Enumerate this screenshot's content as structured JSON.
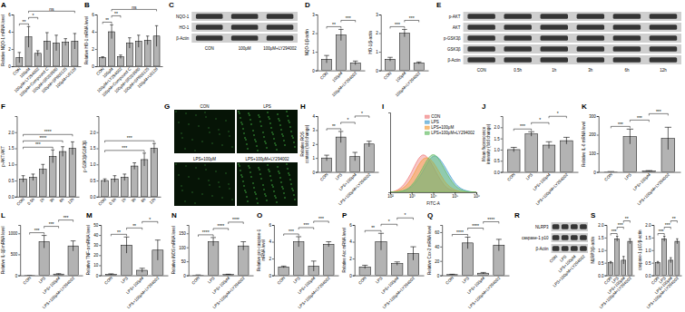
{
  "chart_data": [
    {
      "type": "bar",
      "title": "A",
      "ylabel": "Relative NQO-1 mRNA level",
      "categories": [
        "CON",
        "100μM",
        "100μM+LY294002",
        "100μM+Compound C",
        "100μM+SB203580",
        "100μM+SP600125",
        "100μM+U0126"
      ],
      "values": [
        1.0,
        3.4,
        1.5,
        2.9,
        2.7,
        2.8,
        2.9
      ],
      "errors": [
        0.6,
        1.2,
        0.3,
        1.0,
        0.9,
        0.4,
        0.9
      ],
      "ylim": [
        0,
        6
      ],
      "yticks": [
        0,
        2,
        4,
        6
      ],
      "color": "#b3b3b3",
      "annotations": [
        {
          "text": "**",
          "from": 0,
          "to": 1
        },
        {
          "text": "*",
          "from": 1,
          "to": 2
        },
        {
          "text": "ns",
          "from": 1,
          "to": 6
        }
      ]
    },
    {
      "type": "bar",
      "title": "B",
      "ylabel": "Relative HO-1 mRNA level",
      "categories": [
        "CON",
        "100μM",
        "100μM+LY294002",
        "100μM+Compound C",
        "100μM+SB203580",
        "100μM+SP600125",
        "100μM+U0126"
      ],
      "values": [
        1.0,
        4.0,
        1.1,
        2.7,
        2.9,
        3.0,
        3.5
      ],
      "errors": [
        0.1,
        0.8,
        0.2,
        0.6,
        0.7,
        0.5,
        1.2
      ],
      "ylim": [
        0,
        6
      ],
      "yticks": [
        0,
        2,
        4,
        6
      ],
      "color": "#b3b3b3",
      "annotations": [
        {
          "text": "**",
          "from": 0,
          "to": 1
        },
        {
          "text": "**",
          "from": 1,
          "to": 2
        },
        {
          "text": "ns",
          "from": 1,
          "to": 6
        }
      ]
    },
    {
      "type": "bar",
      "title": "D",
      "ylabel": "NQO-1/β-actin",
      "categories": [
        "CON",
        "100μM",
        "100μM+LY294002"
      ],
      "values": [
        0.6,
        1.9,
        0.4
      ],
      "errors": [
        0.2,
        0.3,
        0.1
      ],
      "ylim": [
        0,
        3
      ],
      "yticks": [
        0,
        1,
        2,
        3
      ],
      "color": "#b3b3b3",
      "annotations": [
        {
          "text": "**",
          "from": 0,
          "to": 1
        },
        {
          "text": "***",
          "from": 1,
          "to": 2
        }
      ]
    },
    {
      "type": "bar",
      "ylabel": "HO-1/β-actin",
      "categories": [
        "CON",
        "100μM",
        "100μM+LY294002"
      ],
      "values": [
        0.6,
        2.0,
        0.4
      ],
      "errors": [
        0.1,
        0.2,
        0.05
      ],
      "ylim": [
        0,
        3
      ],
      "yticks": [
        0,
        1,
        2,
        3
      ],
      "color": "#b3b3b3",
      "annotations": [
        {
          "text": "***",
          "from": 0,
          "to": 1
        },
        {
          "text": "***",
          "from": 1,
          "to": 2
        }
      ]
    },
    {
      "type": "bar",
      "title": "F",
      "ylabel": "p-AKT/AKT",
      "categories": [
        "CON",
        "0.5h",
        "1h",
        "3h",
        "6h",
        "12h"
      ],
      "values": [
        0.55,
        0.6,
        0.85,
        1.25,
        1.4,
        1.5
      ],
      "errors": [
        0.1,
        0.1,
        0.15,
        0.2,
        0.15,
        0.2
      ],
      "ylim": [
        0,
        2.5
      ],
      "yticks": [
        {
          "value": 0,
          "label": "0.0"
        },
        {
          "value": 0.5,
          "label": "0.5"
        },
        {
          "value": 1,
          "label": "1.0"
        },
        {
          "value": 1.5,
          "label": "1.5"
        },
        {
          "value": 2,
          "label": "2.0"
        }
      ],
      "color": "#b3b3b3",
      "annotations": [
        {
          "text": "***",
          "from": 0,
          "to": 3
        },
        {
          "text": "****",
          "from": 0,
          "to": 4
        },
        {
          "text": "****",
          "from": 0,
          "to": 5
        }
      ]
    },
    {
      "type": "bar",
      "ylabel": "p-GSK3β/GSK3β",
      "categories": [
        "CON",
        "0.5h",
        "1h",
        "3h",
        "6h",
        "12h"
      ],
      "values": [
        0.5,
        0.55,
        0.6,
        0.95,
        1.15,
        1.5
      ],
      "errors": [
        0.05,
        0.1,
        0.1,
        0.1,
        0.2,
        0.15
      ],
      "ylim": [
        0,
        2.5
      ],
      "yticks": [
        {
          "value": 0,
          "label": "0.0"
        },
        {
          "value": 0.5,
          "label": "0.5"
        },
        {
          "value": 1,
          "label": "1.0"
        },
        {
          "value": 1.5,
          "label": "1.5"
        },
        {
          "value": 2,
          "label": "2.0"
        }
      ],
      "color": "#b3b3b3",
      "annotations": [
        {
          "text": "***",
          "from": 0,
          "to": 4
        },
        {
          "text": "***",
          "from": 0,
          "to": 5
        }
      ]
    },
    {
      "type": "bar",
      "title": "H",
      "ylabel": "Relative ROS content (fold change)",
      "categories": [
        "CON",
        "LPS",
        "LPS+100μM",
        "LPS+100μM+LY294002"
      ],
      "values": [
        1.0,
        2.5,
        1.1,
        2.0
      ],
      "errors": [
        0.2,
        0.4,
        0.3,
        0.2
      ],
      "ylim": [
        0,
        4
      ],
      "yticks": [
        0,
        1,
        2,
        3,
        4
      ],
      "color": "#b3b3b3",
      "annotations": [
        {
          "text": "**",
          "from": 0,
          "to": 1
        },
        {
          "text": "*",
          "from": 1,
          "to": 2
        },
        {
          "text": "*",
          "from": 2,
          "to": 3
        }
      ]
    },
    {
      "type": "area",
      "title": "I",
      "xlabel": "FITC-A",
      "log": "x",
      "x": [
        100,
        316,
        1000,
        3162,
        10000,
        31623,
        100000,
        316228,
        1000000
      ],
      "xlim": [
        100,
        1000000
      ],
      "xticks": [
        {
          "value": 100,
          "label": "10²"
        },
        {
          "value": 1000,
          "label": "10³"
        },
        {
          "value": 10000,
          "label": "10⁴"
        },
        {
          "value": 100000,
          "label": "10⁵"
        },
        {
          "value": 1000000,
          "label": "10⁶"
        }
      ],
      "ylim": [
        0,
        170
      ],
      "tick_labels": "x",
      "legend": "top-right",
      "series": [
        {
          "name": "CON",
          "color": "#f08080",
          "values": [
            0,
            5,
            40,
            95,
            55,
            10,
            1,
            0,
            0
          ]
        },
        {
          "name": "LPS",
          "color": "#4fa3d1",
          "values": [
            0,
            1,
            8,
            40,
            90,
            60,
            15,
            2,
            0
          ]
        },
        {
          "name": "LPS+100μM",
          "color": "#f5a142",
          "values": [
            0,
            3,
            25,
            80,
            70,
            20,
            3,
            0,
            0
          ]
        },
        {
          "name": "LPS+100μM+LY294002",
          "color": "#6abf69",
          "values": [
            0,
            1,
            10,
            50,
            95,
            50,
            10,
            1,
            0
          ]
        }
      ]
    },
    {
      "type": "bar",
      "title": "J",
      "ylabel": "Mean fluorescence intensity (fold change)",
      "categories": [
        "CON",
        "LPS",
        "LPS+100μM",
        "LPS+100μM+LY294002"
      ],
      "values": [
        1.0,
        1.7,
        1.2,
        1.4
      ],
      "errors": [
        0.1,
        0.1,
        0.15,
        0.15
      ],
      "ylim": [
        0,
        2.5
      ],
      "yticks": [
        {
          "value": 0,
          "label": "0.0"
        },
        {
          "value": 0.5,
          "label": "0.5"
        },
        {
          "value": 1,
          "label": "1.0"
        },
        {
          "value": 1.5,
          "label": "1.5"
        },
        {
          "value": 2,
          "label": "2.0"
        }
      ],
      "color": "#b3b3b3",
      "annotations": [
        {
          "text": "***",
          "from": 0,
          "to": 1
        },
        {
          "text": "*",
          "from": 1,
          "to": 2
        },
        {
          "text": "*",
          "from": 2,
          "to": 3
        }
      ]
    },
    {
      "type": "bar",
      "title": "K",
      "ylabel": "Relative IL-6 mRNA level",
      "categories": [
        "CON",
        "LPS",
        "LPS+100μM",
        "LPS+100μM+LY294002"
      ],
      "values": [
        1,
        190,
        5,
        180
      ],
      "errors": [
        1,
        40,
        2,
        60
      ],
      "ylim": [
        0,
        300
      ],
      "yticks": [
        0,
        100,
        200,
        300
      ],
      "color": "#b3b3b3",
      "annotations": [
        {
          "text": "***",
          "from": 0,
          "to": 1
        },
        {
          "text": "***",
          "from": 1,
          "to": 2
        },
        {
          "text": "***",
          "from": 2,
          "to": 3
        }
      ]
    },
    {
      "type": "bar",
      "title": "L",
      "ylabel": "Relative IL-1β mRNA level",
      "categories": [
        "CON",
        "LPS",
        "LPS+100μM",
        "LPS+100μM+LY294002"
      ],
      "values": [
        1,
        800,
        30,
        700
      ],
      "errors": [
        1,
        150,
        10,
        120
      ],
      "ylim": [
        0,
        1200
      ],
      "yticks": [
        0,
        500,
        1000
      ],
      "color": "#b3b3b3",
      "annotations": [
        {
          "text": "***",
          "from": 0,
          "to": 1
        },
        {
          "text": "***",
          "from": 1,
          "to": 2
        },
        {
          "text": "***",
          "from": 2,
          "to": 3
        }
      ]
    },
    {
      "type": "bar",
      "title": "M",
      "ylabel": "Relative TNF-α mRNA level",
      "categories": [
        "CON",
        "LPS",
        "LPS+100μM",
        "LPS+100μM+LY294002"
      ],
      "values": [
        1,
        30,
        5,
        25
      ],
      "errors": [
        0.5,
        8,
        2,
        10
      ],
      "ylim": [
        0,
        50
      ],
      "yticks": [
        0,
        10,
        20,
        30,
        40,
        50
      ],
      "color": "#b3b3b3",
      "annotations": [
        {
          "text": "**",
          "from": 0,
          "to": 1
        },
        {
          "text": "**",
          "from": 1,
          "to": 2
        },
        {
          "text": "*",
          "from": 2,
          "to": 3
        }
      ]
    },
    {
      "type": "bar",
      "title": "N",
      "ylabel": "Relative iNOS mRNA level",
      "categories": [
        "CON",
        "LPS",
        "LPS+100μM",
        "LPS+100μM+LY294002"
      ],
      "values": [
        1,
        120,
        3,
        105
      ],
      "errors": [
        0.5,
        15,
        1,
        15
      ],
      "ylim": [
        0,
        180
      ],
      "yticks": [
        0,
        50,
        100,
        150
      ],
      "color": "#b3b3b3",
      "annotations": [
        {
          "text": "****",
          "from": 0,
          "to": 1
        },
        {
          "text": "****",
          "from": 1,
          "to": 2
        },
        {
          "text": "****",
          "from": 2,
          "to": 3
        }
      ]
    },
    {
      "type": "bar",
      "title": "O",
      "ylabel": "Relative pro-caspase-1 mRNA level",
      "categories": [
        "CON",
        "LPS",
        "LPS+100μM",
        "LPS+100μM+LY294002"
      ],
      "values": [
        1,
        4,
        1.1,
        3.7
      ],
      "errors": [
        0.1,
        0.6,
        0.6,
        0.3
      ],
      "ylim": [
        0,
        6
      ],
      "yticks": [
        0,
        2,
        4,
        6
      ],
      "color": "#b3b3b3",
      "annotations": [
        {
          "text": "***",
          "from": 0,
          "to": 1
        },
        {
          "text": "***",
          "from": 1,
          "to": 2
        },
        {
          "text": "***",
          "from": 2,
          "to": 3
        }
      ]
    },
    {
      "type": "bar",
      "title": "P",
      "ylabel": "Relative Asc mRNA level",
      "categories": [
        "CON",
        "LPS",
        "LPS+100μM",
        "LPS+100μM+LY294002"
      ],
      "values": [
        1,
        4,
        1.4,
        2.6
      ],
      "errors": [
        0.2,
        1,
        0.2,
        0.8
      ],
      "ylim": [
        0,
        6
      ],
      "yticks": [
        0,
        2,
        4,
        6
      ],
      "color": "#b3b3b3",
      "annotations": [
        {
          "text": "**",
          "from": 0,
          "to": 1
        },
        {
          "text": "*",
          "from": 1,
          "to": 2
        },
        {
          "text": "*",
          "from": 2,
          "to": 3
        }
      ]
    },
    {
      "type": "bar",
      "title": "Q",
      "ylabel": "Relative Cox-2 mRNA level",
      "categories": [
        "CON",
        "LPS",
        "LPS+100μM",
        "LPS+100μM+LY294002"
      ],
      "values": [
        1,
        45,
        3,
        42
      ],
      "errors": [
        0.5,
        8,
        1,
        8
      ],
      "ylim": [
        0,
        70
      ],
      "yticks": [
        0,
        20,
        40,
        60
      ],
      "color": "#b3b3b3",
      "annotations": [
        {
          "text": "****",
          "from": 0,
          "to": 1
        },
        {
          "text": "****",
          "from": 1,
          "to": 2
        },
        {
          "text": "****",
          "from": 2,
          "to": 3
        }
      ]
    },
    {
      "type": "bar",
      "title": "S",
      "ylabel": "NLRP3/β-actin",
      "categories": [
        "CON",
        "LPS",
        "LPS+100μM",
        "LPS+100μM+LY294002"
      ],
      "values": [
        0.5,
        1.45,
        0.6,
        1.35
      ],
      "errors": [
        0.05,
        0.1,
        0.15,
        0.1
      ],
      "ylim": [
        0,
        2
      ],
      "yticks": [
        {
          "value": 0,
          "label": "0.0"
        },
        {
          "value": 0.5,
          "label": "0.5"
        },
        {
          "value": 1,
          "label": "1.0"
        },
        {
          "value": 1.5,
          "label": "1.5"
        },
        {
          "value": 2,
          "label": "2.0"
        }
      ],
      "color": "#b3b3b3",
      "annotations": [
        {
          "text": "***",
          "from": 0,
          "to": 1
        },
        {
          "text": "***",
          "from": 1,
          "to": 2
        },
        {
          "text": "**",
          "from": 2,
          "to": 3
        }
      ]
    },
    {
      "type": "bar",
      "ylabel": "caspase-1 p10/β-actin",
      "categories": [
        "CON",
        "LPS",
        "LPS+100μM",
        "LPS+100μM+LY294002"
      ],
      "values": [
        0.5,
        1.45,
        0.6,
        1.35
      ],
      "errors": [
        0.05,
        0.1,
        0.1,
        0.1
      ],
      "ylim": [
        0,
        2
      ],
      "yticks": [
        {
          "value": 0,
          "label": "0.0"
        },
        {
          "value": 0.5,
          "label": "0.5"
        },
        {
          "value": 1,
          "label": "1.0"
        },
        {
          "value": 1.5,
          "label": "1.5"
        },
        {
          "value": 2,
          "label": "2.0"
        }
      ],
      "color": "#b3b3b3",
      "annotations": [
        {
          "text": "***",
          "from": 0,
          "to": 1
        },
        {
          "text": "***",
          "from": 1,
          "to": 2
        },
        {
          "text": "**",
          "from": 2,
          "to": 3
        }
      ]
    }
  ],
  "blots": [
    {
      "title": "C",
      "rows": [
        "NQO-1",
        "HO-1",
        "β-Actin"
      ],
      "lanes": [
        "CON",
        "100μM",
        "100μM+LY294002"
      ]
    },
    {
      "title": "E",
      "rows": [
        "p-AKT",
        "AKT",
        "p-GSK3β",
        "GSK3β",
        "β-Actin"
      ],
      "lanes": [
        "CON",
        "0.5h",
        "1h",
        "3h",
        "6h",
        "12h"
      ]
    },
    {
      "title": "R",
      "rows": [
        "NLRP3",
        "caspase-1 p10",
        "β-Actin"
      ],
      "lanes": [
        "CON",
        "LPS",
        "LPS+100μM",
        "LPS+100μM+LY294002"
      ]
    }
  ],
  "micrographs": {
    "title": "G",
    "panels": [
      "CON",
      "LPS",
      "LPS+100μM",
      "LPS+100μM+LY294002"
    ]
  }
}
